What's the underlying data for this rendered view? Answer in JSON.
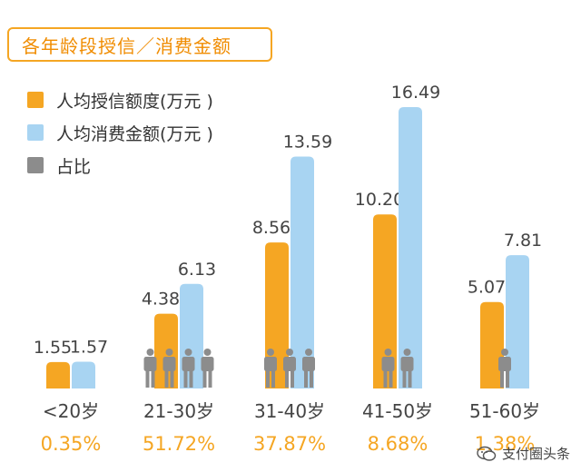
{
  "chart_data": {
    "type": "bar",
    "title": "各年龄段授信／消费金额",
    "categories": [
      "<20岁",
      "21-30岁",
      "31-40岁",
      "41-50岁",
      "51-60岁"
    ],
    "shares": [
      "0.35%",
      "51.72%",
      "37.87%",
      "8.68%",
      "1.38%"
    ],
    "person_icons": [
      0,
      4,
      3,
      2,
      1
    ],
    "series": [
      {
        "name": "人均授信额度(万元 )",
        "color": "#f5a623",
        "values": [
          1.55,
          4.38,
          8.56,
          10.2,
          5.07
        ],
        "labels": [
          "1.55",
          "4.38",
          "8.56",
          "10.20",
          "5.07"
        ]
      },
      {
        "name": "人均消费金额(万元 )",
        "color": "#a8d4f2",
        "values": [
          1.57,
          6.13,
          13.59,
          16.49,
          7.81
        ],
        "labels": [
          "1.57",
          "6.13",
          "13.59",
          "16.49",
          "7.81"
        ]
      }
    ],
    "share_legend": {
      "name": "占比",
      "color": "#8c8c8c"
    },
    "ylim": [
      0,
      16.49
    ],
    "grid": false
  },
  "watermark": {
    "text": "支付圈头条"
  }
}
